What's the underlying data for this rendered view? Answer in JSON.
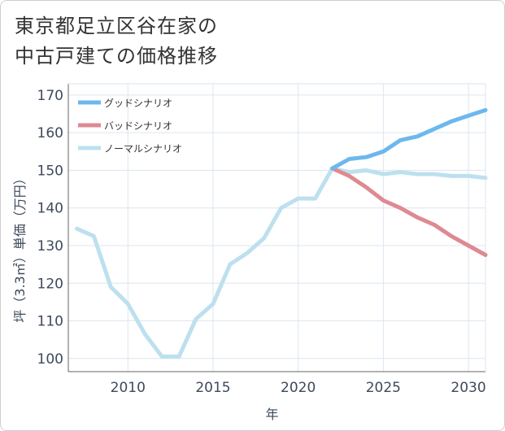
{
  "title": "東京都足立区谷在家の\n中古戸建ての価格推移",
  "chart_data": {
    "type": "line",
    "title": "東京都足立区谷在家の中古戸建ての価格推移",
    "xlabel": "年",
    "ylabel": "坪（3.3㎡）単価（万円）",
    "xlim": [
      2006.5,
      2031
    ],
    "ylim": [
      96.5,
      173
    ],
    "xticks": [
      2010,
      2015,
      2020,
      2025,
      2030
    ],
    "yticks": [
      100,
      110,
      120,
      130,
      140,
      150,
      160,
      170
    ],
    "grid": true,
    "legend_position": "top-left",
    "series": [
      {
        "name": "グッドシナリオ",
        "color": "#6cb8ee",
        "x": [
          2022,
          2023,
          2024,
          2025,
          2026,
          2027,
          2028,
          2029,
          2030,
          2031
        ],
        "y": [
          150.5,
          153,
          153.5,
          155,
          158,
          159,
          161,
          163,
          164.5,
          166
        ]
      },
      {
        "name": "バッドシナリオ",
        "color": "#de8a92",
        "x": [
          2022,
          2023,
          2024,
          2025,
          2026,
          2027,
          2028,
          2029,
          2030,
          2031
        ],
        "y": [
          150.5,
          148.5,
          145.5,
          142,
          140,
          137.5,
          135.5,
          132.5,
          130,
          127.5
        ]
      },
      {
        "name": "ノーマルシナリオ",
        "color": "#bde0ef",
        "x": [
          2007,
          2008,
          2009,
          2010,
          2011,
          2012,
          2013,
          2014,
          2015,
          2016,
          2017,
          2018,
          2019,
          2020,
          2021,
          2022,
          2023,
          2024,
          2025,
          2026,
          2027,
          2028,
          2029,
          2030,
          2031
        ],
        "y": [
          134.5,
          132.5,
          119,
          114.5,
          106.5,
          100.5,
          100.5,
          110.5,
          114.5,
          125,
          128,
          132,
          140,
          142.5,
          142.5,
          150.5,
          149.5,
          150,
          149,
          149.5,
          149,
          149,
          148.5,
          148.5,
          148
        ]
      }
    ]
  }
}
